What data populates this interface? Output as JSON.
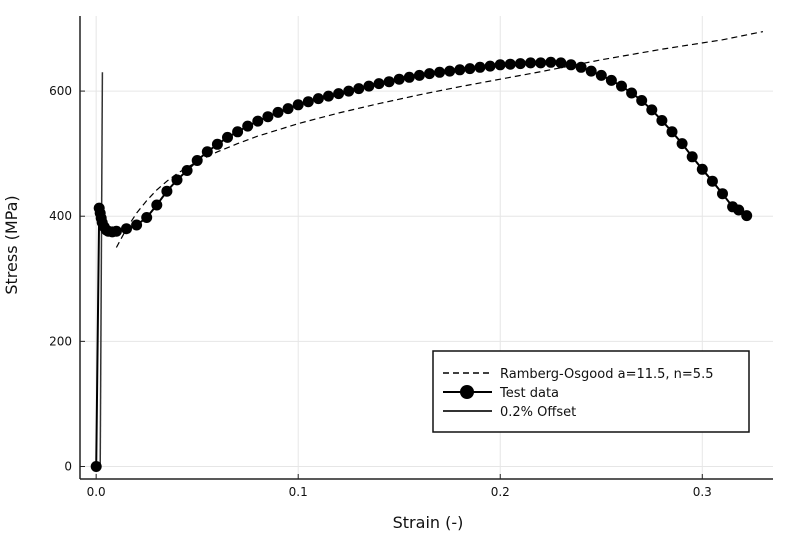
{
  "chart_data": {
    "type": "line",
    "xlabel": "Strain (-)",
    "ylabel": "Stress (MPa)",
    "xlim": [
      -0.008,
      0.335
    ],
    "ylim": [
      -20,
      720
    ],
    "x_ticks": [
      0.0,
      0.1,
      0.2,
      0.3
    ],
    "x_tick_labels": [
      "0.0",
      "0.1",
      "0.2",
      "0.3"
    ],
    "y_ticks": [
      0,
      200,
      400,
      600
    ],
    "y_tick_labels": [
      "0",
      "200",
      "400",
      "600"
    ],
    "grid": true,
    "legend_position": "bottom-right",
    "series": [
      {
        "name": "Ramberg-Osgood a=11.5, n=5.5",
        "style": "dashed",
        "color": "#000000",
        "x": [
          0.01,
          0.015,
          0.02,
          0.025,
          0.03,
          0.035,
          0.04,
          0.045,
          0.05,
          0.06,
          0.07,
          0.08,
          0.09,
          0.1,
          0.12,
          0.14,
          0.16,
          0.18,
          0.2,
          0.22,
          0.25,
          0.28,
          0.31,
          0.33
        ],
        "y": [
          350,
          380,
          405,
          425,
          442,
          456,
          468,
          478,
          487,
          503,
          516,
          528,
          538,
          548,
          565,
          580,
          594,
          607,
          619,
          631,
          650,
          667,
          682,
          695
        ]
      },
      {
        "name": "Test data",
        "style": "line-markers",
        "color": "#000000",
        "x": [
          0.0,
          0.0015,
          0.002,
          0.0025,
          0.003,
          0.004,
          0.005,
          0.006,
          0.008,
          0.01,
          0.015,
          0.02,
          0.025,
          0.03,
          0.035,
          0.04,
          0.045,
          0.05,
          0.055,
          0.06,
          0.065,
          0.07,
          0.075,
          0.08,
          0.085,
          0.09,
          0.095,
          0.1,
          0.105,
          0.11,
          0.115,
          0.12,
          0.125,
          0.13,
          0.135,
          0.14,
          0.145,
          0.15,
          0.155,
          0.16,
          0.165,
          0.17,
          0.175,
          0.18,
          0.185,
          0.19,
          0.195,
          0.2,
          0.205,
          0.21,
          0.215,
          0.22,
          0.225,
          0.23,
          0.235,
          0.24,
          0.245,
          0.25,
          0.255,
          0.26,
          0.265,
          0.27,
          0.275,
          0.28,
          0.285,
          0.29,
          0.295,
          0.3,
          0.305,
          0.31,
          0.315,
          0.318,
          0.322
        ],
        "y": [
          0,
          413,
          405,
          397,
          390,
          383,
          378,
          376,
          375,
          376,
          380,
          386,
          398,
          418,
          440,
          458,
          473,
          489,
          503,
          515,
          526,
          535,
          544,
          552,
          559,
          566,
          572,
          578,
          583,
          588,
          592,
          596,
          600,
          604,
          608,
          612,
          615,
          619,
          622,
          625,
          628,
          630,
          632,
          634,
          636,
          638,
          640,
          642,
          643,
          644,
          645,
          645,
          646,
          645,
          642,
          638,
          632,
          625,
          617,
          608,
          597,
          585,
          570,
          553,
          535,
          516,
          495,
          475,
          456,
          436,
          415,
          410,
          401
        ]
      },
      {
        "name": "0.2% Offset",
        "style": "solid",
        "color": "#333333",
        "x": [
          0.002,
          0.0031
        ],
        "y": [
          0,
          630
        ]
      }
    ]
  }
}
